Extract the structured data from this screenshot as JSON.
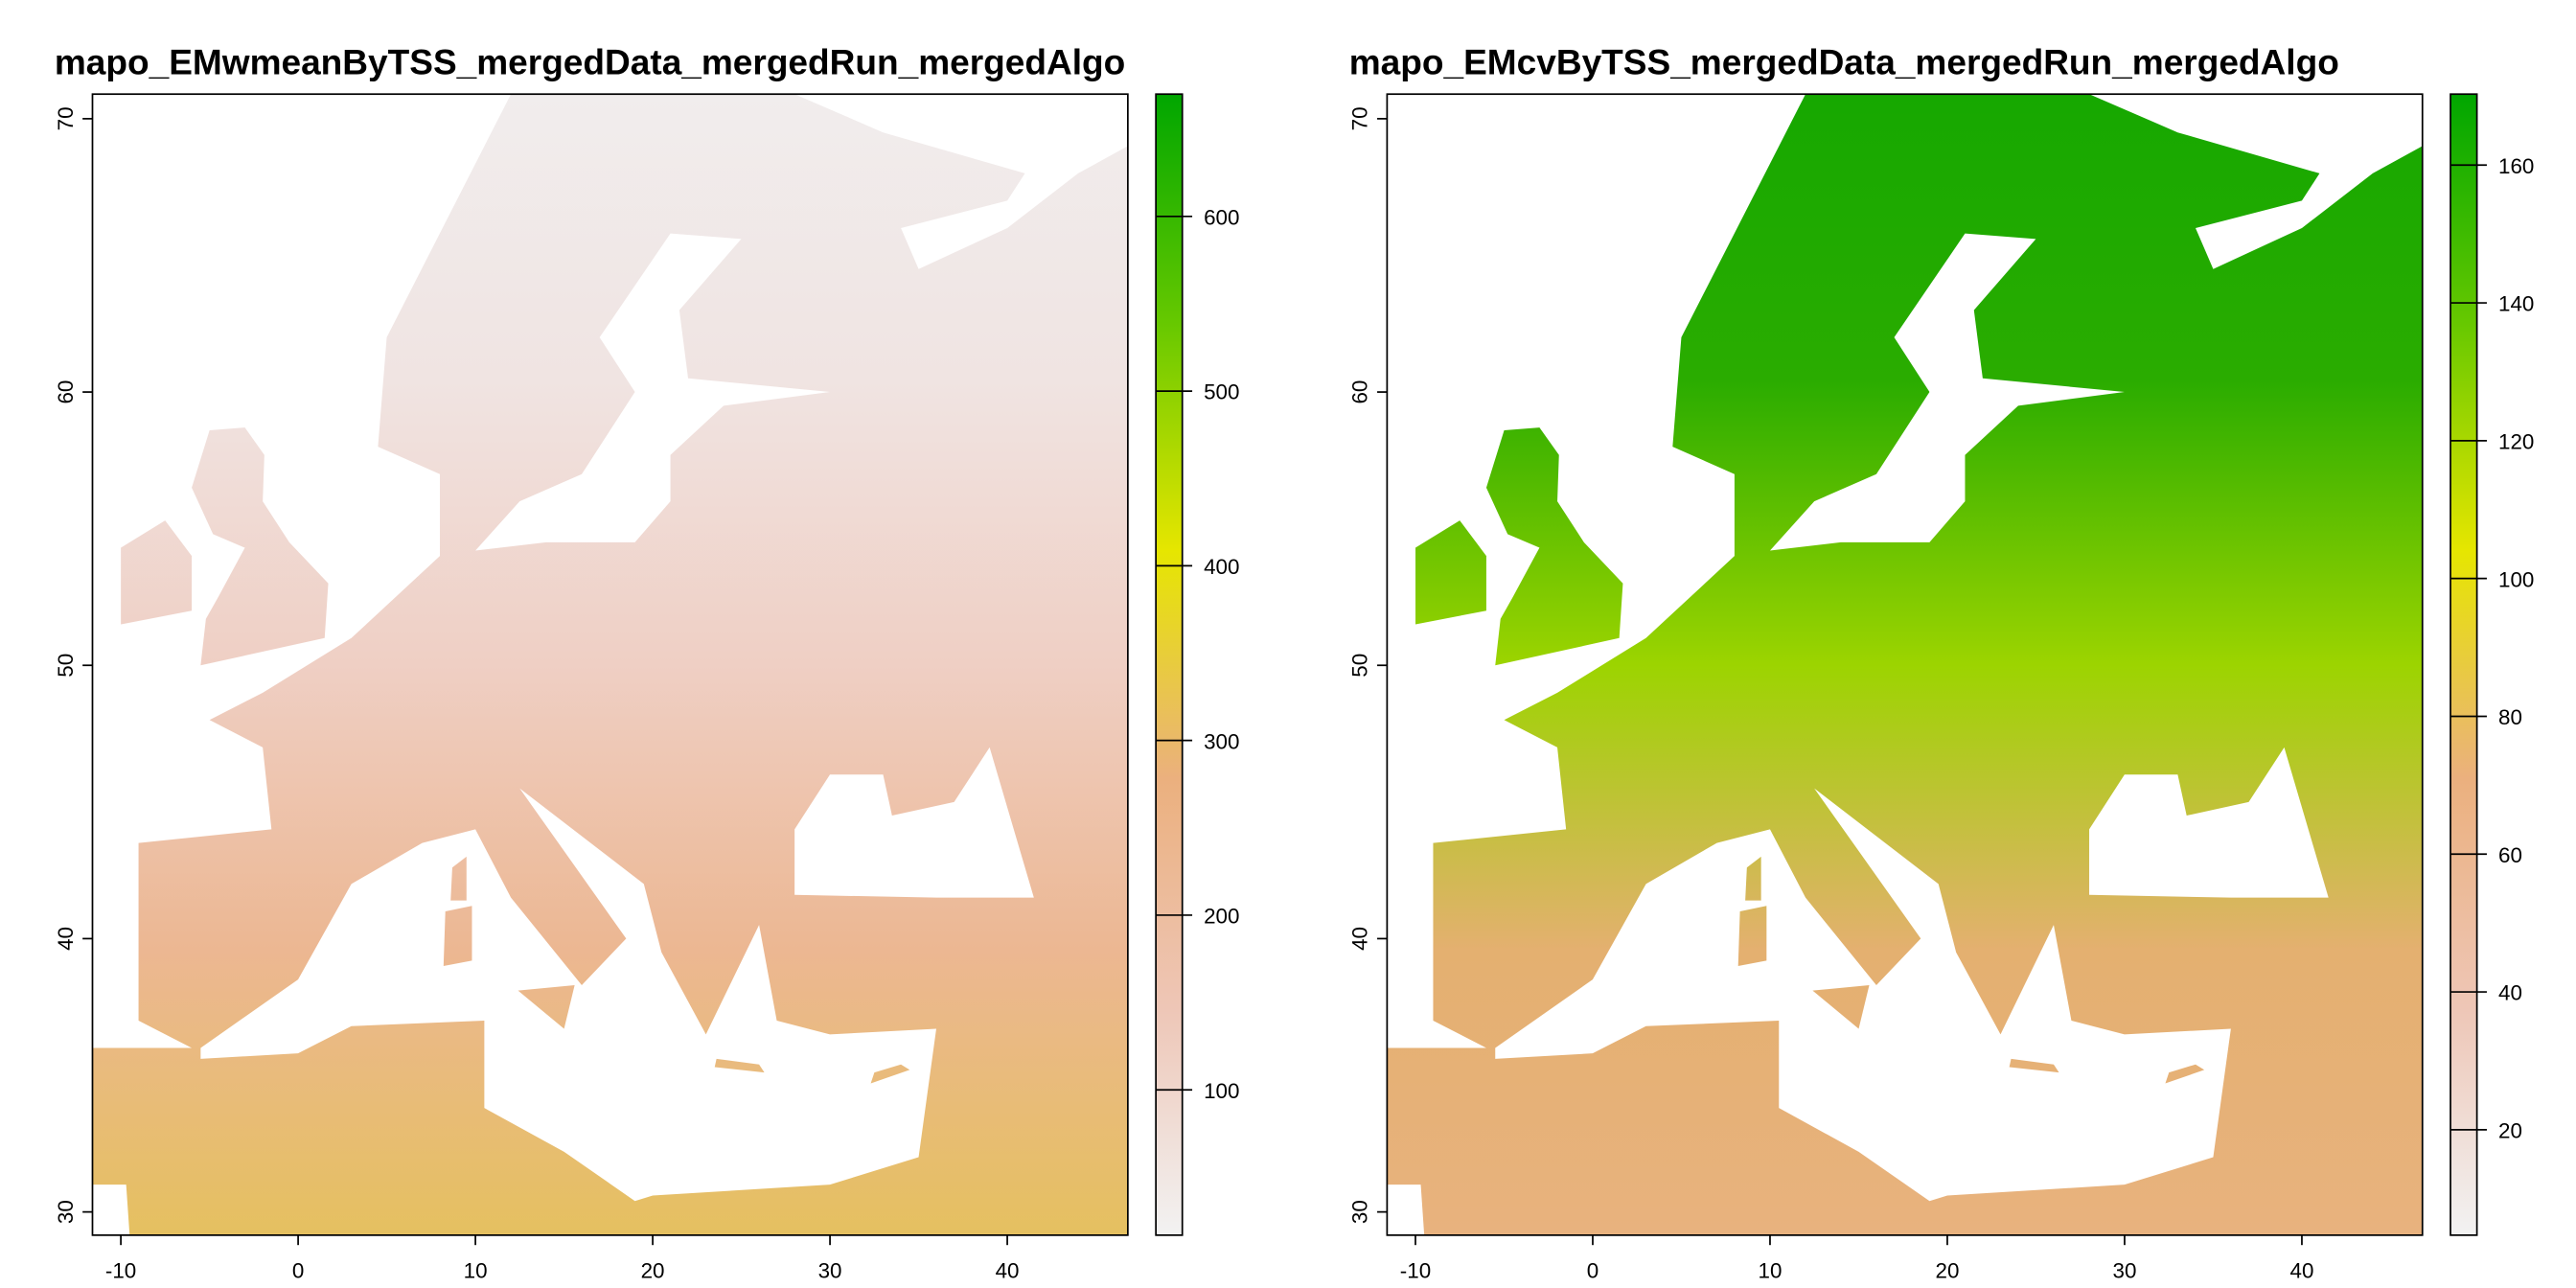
{
  "chart_data": [
    {
      "type": "raster",
      "title": "mapo_EMwmeanByTSS_mergedData_mergedRun_mergedAlgo",
      "xlim": [
        -11.6,
        46.8
      ],
      "ylim": [
        29.15,
        70.9
      ],
      "xticks": [
        -10,
        0,
        10,
        20,
        30,
        40
      ],
      "yticks": [
        30,
        40,
        50,
        60,
        70
      ],
      "zlim": [
        16.8,
        670
      ],
      "zticks": [
        100,
        200,
        300,
        400,
        500,
        600
      ],
      "colors": [
        "#f2f2f2",
        "#eec6b6",
        "#ebb07e",
        "#e6e600",
        "#66c800",
        "#00a600"
      ],
      "land_gradient": [
        "#f1eded",
        "#f0e4e2",
        "#efcfc4",
        "#ecb792",
        "#e5c060"
      ]
    },
    {
      "type": "raster",
      "title": "mapo_EMcvByTSS_mergedData_mergedRun_mergedAlgo",
      "xlim": [
        -11.6,
        46.8
      ],
      "ylim": [
        29.15,
        70.9
      ],
      "xticks": [
        -10,
        0,
        10,
        20,
        30,
        40
      ],
      "yticks": [
        30,
        40,
        50,
        60,
        70
      ],
      "zlim": [
        4.7,
        170.3
      ],
      "zticks": [
        20,
        40,
        60,
        80,
        100,
        120,
        140,
        160
      ],
      "colors": [
        "#f2f2f2",
        "#eec6b6",
        "#ebb07e",
        "#e6e600",
        "#66c800",
        "#00a600"
      ],
      "land_gradient": [
        "#16a800",
        "#2aac00",
        "#9cd400",
        "#e4b070",
        "#e8b27e"
      ]
    }
  ]
}
